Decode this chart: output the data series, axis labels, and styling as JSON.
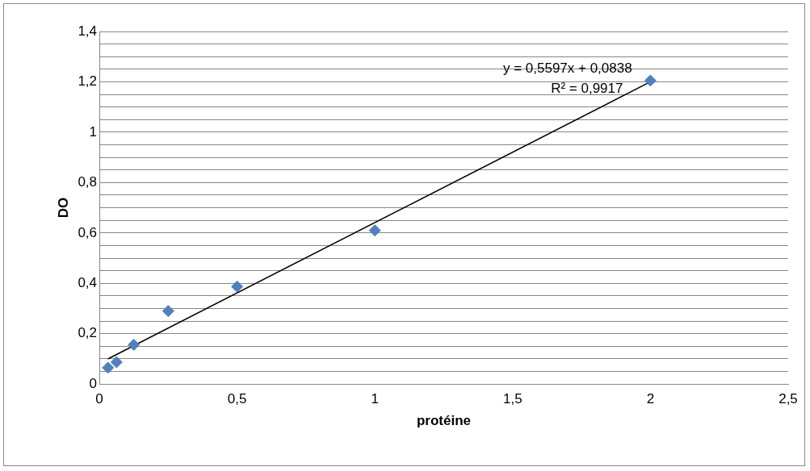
{
  "chart_data": {
    "type": "scatter",
    "xlabel": "protéine",
    "ylabel": "DO",
    "series": [
      {
        "color": "#4f81bd",
        "marker": "diamond",
        "x": [
          0.03125,
          0.0625,
          0.125,
          0.25,
          0.5,
          1,
          2
        ],
        "values": [
          0.065,
          0.087,
          0.156,
          0.29,
          0.387,
          0.61,
          1.205
        ]
      },
      {
        "type": "line",
        "color": "#000000",
        "marker": "none",
        "x": [
          0.03125,
          2
        ],
        "values": [
          0.1,
          1.2
        ]
      }
    ],
    "annotations": [
      "y = 0,5597x + 0,0838",
      "R² = 0,9917"
    ],
    "xlim": [
      0,
      2.5
    ],
    "xticks": [
      0,
      {
        "value": 0.5,
        "label": "0,5"
      },
      1,
      {
        "value": 1.5,
        "label": "1,5"
      },
      2,
      {
        "value": 2.5,
        "label": "2,5"
      }
    ],
    "ylim": [
      0,
      1.4
    ],
    "yticks": [
      0,
      {
        "value": 0.05,
        "label": null
      },
      {
        "value": 0.1,
        "label": null
      },
      {
        "value": 0.15,
        "label": null
      },
      {
        "value": 0.2,
        "label": "0,2"
      },
      {
        "value": 0.25,
        "label": null
      },
      {
        "value": 0.3,
        "label": null
      },
      {
        "value": 0.35,
        "label": null
      },
      {
        "value": 0.4,
        "label": "0,4"
      },
      {
        "value": 0.45,
        "label": null
      },
      {
        "value": 0.5,
        "label": null
      },
      {
        "value": 0.55,
        "label": null
      },
      {
        "value": 0.6,
        "label": "0,6"
      },
      {
        "value": 0.65,
        "label": null
      },
      {
        "value": 0.7,
        "label": null
      },
      {
        "value": 0.75,
        "label": null
      },
      {
        "value": 0.8,
        "label": "0,8"
      },
      {
        "value": 0.85,
        "label": null
      },
      {
        "value": 0.9,
        "label": null
      },
      {
        "value": 0.95,
        "label": null
      },
      1,
      {
        "value": 1.05,
        "label": null
      },
      {
        "value": 1.1,
        "label": null
      },
      {
        "value": 1.15,
        "label": null
      },
      {
        "value": 1.2,
        "label": "1,2"
      },
      {
        "value": 1.25,
        "label": null
      },
      {
        "value": 1.3,
        "label": null
      },
      {
        "value": 1.35,
        "label": null
      },
      {
        "value": 1.4,
        "label": "1,4"
      }
    ],
    "grid": "y",
    "legend": false
  }
}
